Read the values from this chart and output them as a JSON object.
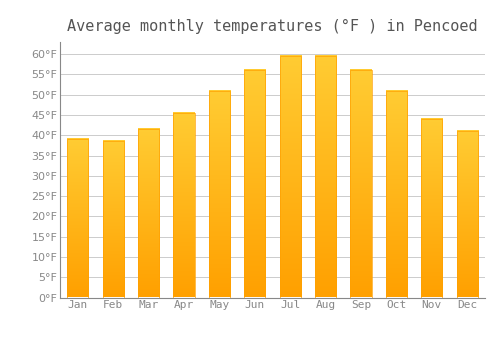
{
  "title": "Average monthly temperatures (°F ) in Pencoed",
  "months": [
    "Jan",
    "Feb",
    "Mar",
    "Apr",
    "May",
    "Jun",
    "Jul",
    "Aug",
    "Sep",
    "Oct",
    "Nov",
    "Dec"
  ],
  "values": [
    39,
    38.5,
    41.5,
    45.5,
    51,
    56,
    59.5,
    59.5,
    56,
    51,
    44,
    41
  ],
  "bar_color_top": "#FFCC33",
  "bar_color_bottom": "#FFA000",
  "ylim": [
    0,
    63
  ],
  "yticks": [
    0,
    5,
    10,
    15,
    20,
    25,
    30,
    35,
    40,
    45,
    50,
    55,
    60
  ],
  "background_color": "#ffffff",
  "grid_color": "#cccccc",
  "title_fontsize": 11,
  "tick_fontsize": 8,
  "tick_color": "#888888",
  "title_color": "#555555"
}
